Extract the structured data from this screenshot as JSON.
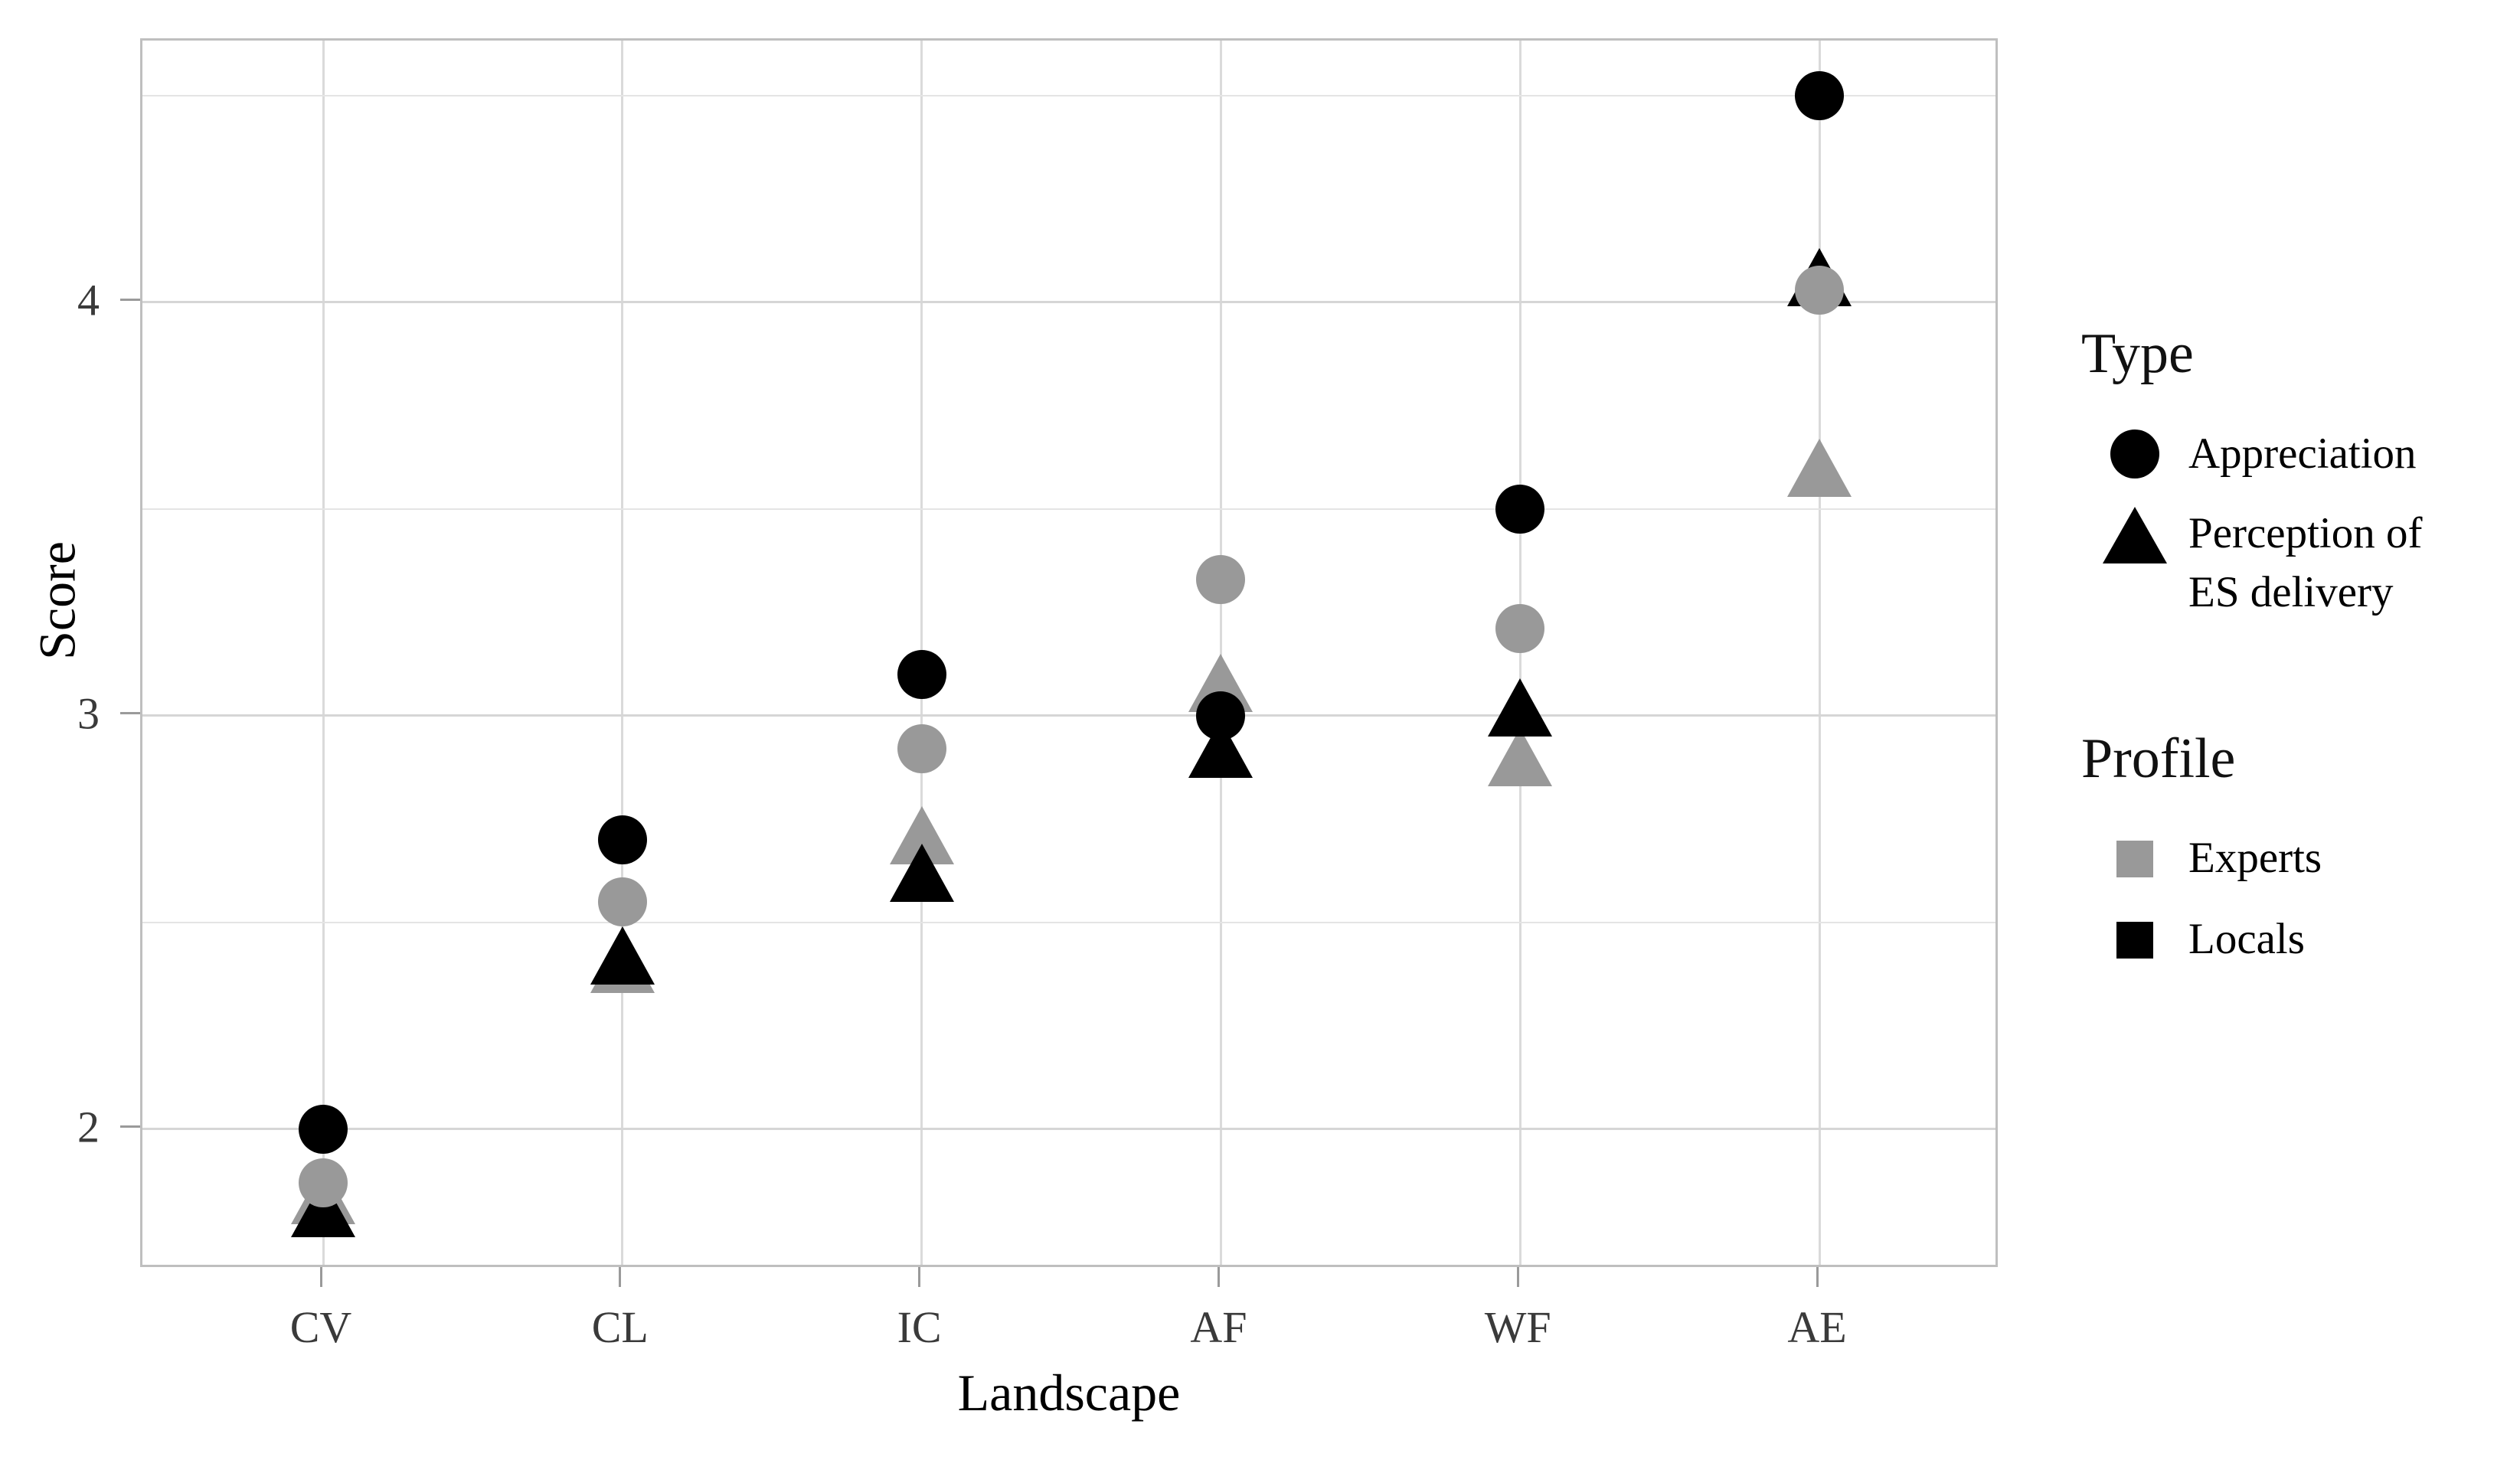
{
  "axes": {
    "y_title": "Score",
    "x_title": "Landscape",
    "y_tick_labels": [
      "2",
      "3",
      "4"
    ],
    "x_tick_labels": [
      "CV",
      "CL",
      "IC",
      "AF",
      "WF",
      "AE"
    ]
  },
  "chart_data": {
    "type": "scatter",
    "categories": [
      "CV",
      "CL",
      "IC",
      "AF",
      "WF",
      "AE"
    ],
    "xlabel": "Landscape",
    "ylabel": "Score",
    "ylim": [
      1.661,
      4.633
    ],
    "yticks": [
      2,
      3,
      4
    ],
    "yticks_minor": [
      2.5,
      3.5,
      4.5
    ],
    "grid": "on",
    "legend_position": "right",
    "series": [
      {
        "name": "Perception of ES delivery - Experts",
        "type": "Perception of ES delivery",
        "profile": "Experts",
        "symbol": "triangle",
        "color": "#999999",
        "values": [
          1.84,
          2.4,
          2.71,
          3.08,
          2.9,
          3.6
        ]
      },
      {
        "name": "Perception of ES delivery - Locals",
        "type": "Perception of ES delivery",
        "profile": "Locals",
        "symbol": "triangle",
        "color": "#000000",
        "values": [
          1.81,
          2.42,
          2.62,
          2.92,
          3.02,
          4.06
        ]
      },
      {
        "name": "Appreciation - Experts",
        "type": "Appreciation",
        "profile": "Experts",
        "symbol": "circle",
        "color": "#999999",
        "values": [
          1.87,
          2.55,
          2.92,
          3.33,
          3.21,
          4.03
        ]
      },
      {
        "name": "Appreciation - Locals",
        "type": "Appreciation",
        "profile": "Locals",
        "symbol": "circle",
        "color": "#000000",
        "values": [
          2.0,
          2.7,
          3.1,
          3.0,
          3.5,
          4.5
        ]
      }
    ]
  },
  "legend": {
    "type_title": "Type",
    "type_items": [
      {
        "label": "Appreciation",
        "symbol": "circle"
      },
      {
        "label_line1": "Perception of",
        "label_line2": "ES delivery",
        "symbol": "triangle"
      }
    ],
    "profile_title": "Profile",
    "profile_items": [
      {
        "label": "Experts",
        "color": "#999999"
      },
      {
        "label": "Locals",
        "color": "#000000"
      }
    ]
  },
  "colors": {
    "experts": "#999999",
    "locals": "#000000",
    "grid_major": "#d6d6d6",
    "grid_minor": "#e4e4e4",
    "panel_border": "#bfbfbf"
  }
}
